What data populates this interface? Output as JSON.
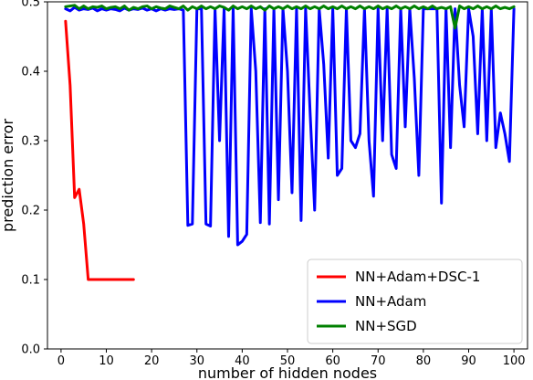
{
  "chart_data": {
    "type": "line",
    "title": "",
    "xlabel": "number of hidden nodes",
    "ylabel": "prediction error",
    "xlim": [
      -3,
      103
    ],
    "ylim": [
      0,
      0.5
    ],
    "grid": false,
    "legend_position": "bottom-right",
    "x_ticks": [
      0,
      10,
      20,
      30,
      40,
      50,
      60,
      70,
      80,
      90,
      100
    ],
    "x_tick_labels": [
      "0",
      "10",
      "20",
      "30",
      "40",
      "50",
      "60",
      "70",
      "80",
      "90",
      "100"
    ],
    "y_ticks": [
      0.0,
      0.1,
      0.2,
      0.3,
      0.4,
      0.5
    ],
    "y_tick_labels": [
      "0.0",
      "0.1",
      "0.2",
      "0.3",
      "0.4",
      "0.5"
    ],
    "series": [
      {
        "name": "NN+Adam+DSC-1",
        "color": "#ff0000",
        "x": [
          1,
          2,
          3,
          4,
          5,
          6,
          7,
          8,
          9,
          10,
          11,
          12,
          13,
          14,
          15,
          16
        ],
        "y": [
          0.472,
          0.38,
          0.218,
          0.23,
          0.18,
          0.1,
          0.1,
          0.1,
          0.1,
          0.1,
          0.1,
          0.1,
          0.1,
          0.1,
          0.1,
          0.1
        ]
      },
      {
        "name": "NN+Adam",
        "color": "#0000ff",
        "x": [
          1,
          2,
          3,
          4,
          5,
          6,
          7,
          8,
          9,
          10,
          11,
          12,
          13,
          14,
          15,
          16,
          17,
          18,
          19,
          20,
          21,
          22,
          23,
          24,
          25,
          26,
          27,
          28,
          29,
          30,
          31,
          32,
          33,
          34,
          35,
          36,
          37,
          38,
          39,
          40,
          41,
          42,
          43,
          44,
          45,
          46,
          47,
          48,
          49,
          50,
          51,
          52,
          53,
          54,
          55,
          56,
          57,
          58,
          59,
          60,
          61,
          62,
          63,
          64,
          65,
          66,
          67,
          68,
          69,
          70,
          71,
          72,
          73,
          74,
          75,
          76,
          77,
          78,
          79,
          80,
          81,
          82,
          83,
          84,
          85,
          86,
          87,
          88,
          89,
          90,
          91,
          92,
          93,
          94,
          95,
          96,
          97,
          98,
          99,
          100
        ],
        "y": [
          0.49,
          0.487,
          0.492,
          0.488,
          0.49,
          0.489,
          0.491,
          0.487,
          0.49,
          0.488,
          0.49,
          0.489,
          0.487,
          0.491,
          0.488,
          0.49,
          0.489,
          0.491,
          0.488,
          0.49,
          0.487,
          0.49,
          0.488,
          0.49,
          0.489,
          0.49,
          0.488,
          0.178,
          0.18,
          0.49,
          0.49,
          0.18,
          0.177,
          0.49,
          0.3,
          0.49,
          0.162,
          0.49,
          0.15,
          0.155,
          0.165,
          0.49,
          0.4,
          0.182,
          0.49,
          0.18,
          0.49,
          0.215,
          0.49,
          0.4,
          0.225,
          0.49,
          0.185,
          0.49,
          0.34,
          0.2,
          0.49,
          0.41,
          0.275,
          0.49,
          0.25,
          0.26,
          0.49,
          0.3,
          0.29,
          0.31,
          0.49,
          0.3,
          0.22,
          0.49,
          0.3,
          0.49,
          0.28,
          0.26,
          0.49,
          0.32,
          0.49,
          0.39,
          0.25,
          0.49,
          0.49,
          0.49,
          0.49,
          0.21,
          0.49,
          0.29,
          0.49,
          0.38,
          0.32,
          0.49,
          0.45,
          0.31,
          0.49,
          0.3,
          0.49,
          0.29,
          0.34,
          0.31,
          0.27,
          0.49
        ]
      },
      {
        "name": "NN+SGD",
        "color": "#008000",
        "x": [
          1,
          2,
          3,
          4,
          5,
          6,
          7,
          8,
          9,
          10,
          11,
          12,
          13,
          14,
          15,
          16,
          17,
          18,
          19,
          20,
          21,
          22,
          23,
          24,
          25,
          26,
          27,
          28,
          29,
          30,
          31,
          32,
          33,
          34,
          35,
          36,
          37,
          38,
          39,
          40,
          41,
          42,
          43,
          44,
          45,
          46,
          47,
          48,
          49,
          50,
          51,
          52,
          53,
          54,
          55,
          56,
          57,
          58,
          59,
          60,
          61,
          62,
          63,
          64,
          65,
          66,
          67,
          68,
          69,
          70,
          71,
          72,
          73,
          74,
          75,
          76,
          77,
          78,
          79,
          80,
          81,
          82,
          83,
          84,
          85,
          86,
          87,
          88,
          89,
          90,
          91,
          92,
          93,
          94,
          95,
          96,
          97,
          98,
          99,
          100
        ],
        "y": [
          0.493,
          0.494,
          0.495,
          0.49,
          0.494,
          0.49,
          0.493,
          0.492,
          0.494,
          0.49,
          0.492,
          0.493,
          0.49,
          0.494,
          0.488,
          0.492,
          0.49,
          0.493,
          0.494,
          0.49,
          0.493,
          0.491,
          0.49,
          0.494,
          0.492,
          0.49,
          0.494,
          0.488,
          0.493,
          0.49,
          0.494,
          0.49,
          0.493,
          0.49,
          0.494,
          0.492,
          0.488,
          0.494,
          0.49,
          0.493,
          0.49,
          0.494,
          0.49,
          0.493,
          0.488,
          0.494,
          0.49,
          0.493,
          0.49,
          0.494,
          0.49,
          0.493,
          0.49,
          0.494,
          0.49,
          0.493,
          0.49,
          0.494,
          0.49,
          0.493,
          0.49,
          0.494,
          0.49,
          0.493,
          0.49,
          0.494,
          0.49,
          0.493,
          0.49,
          0.494,
          0.49,
          0.493,
          0.49,
          0.494,
          0.49,
          0.493,
          0.49,
          0.494,
          0.49,
          0.493,
          0.49,
          0.494,
          0.49,
          0.492,
          0.49,
          0.493,
          0.462,
          0.494,
          0.49,
          0.493,
          0.49,
          0.494,
          0.49,
          0.493,
          0.49,
          0.494,
          0.49,
          0.492,
          0.49,
          0.493
        ]
      }
    ]
  }
}
